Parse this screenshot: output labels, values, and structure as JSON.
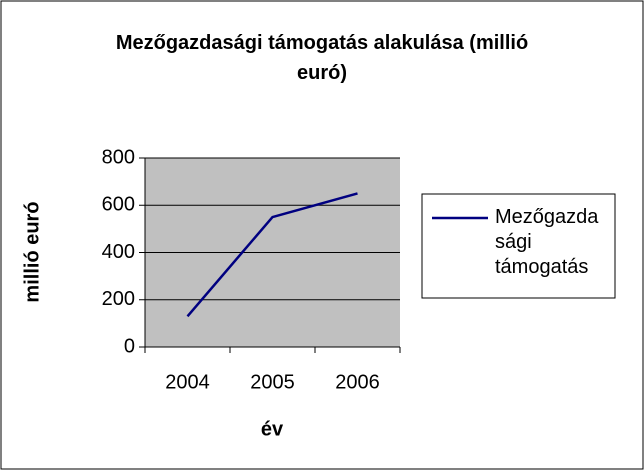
{
  "chart_data": {
    "type": "line",
    "title": "Mezőgazdasági támogatás alakulása (millió euró)",
    "x_label": "év",
    "y_label": "millió euró",
    "categories": [
      "2004",
      "2005",
      "2006"
    ],
    "series": [
      {
        "name": "Mezőgazdasági támogatás",
        "color": "#000080",
        "values": [
          130,
          550,
          650
        ]
      }
    ],
    "ylim": [
      0,
      800
    ],
    "yticks": [
      0,
      200,
      400,
      600,
      800
    ],
    "grid": true,
    "legend": "right",
    "plot_background": "#c0c0c0"
  }
}
